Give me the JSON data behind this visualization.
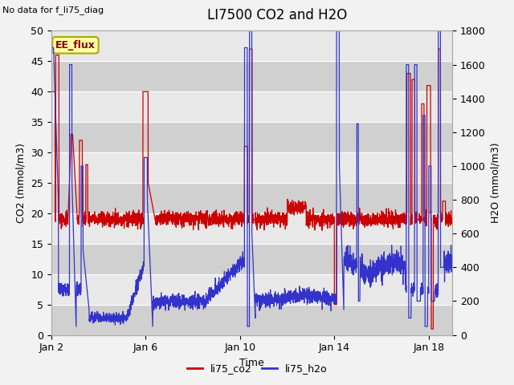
{
  "title": "LI7500 CO2 and H2O",
  "top_left_text": "No data for f_li75_diag",
  "xlabel": "Time",
  "ylabel_left": "CO2 (mmol/m3)",
  "ylabel_right": "H2O (mmol/m3)",
  "ylim_left": [
    0,
    50
  ],
  "ylim_right": [
    0,
    1800
  ],
  "xtick_labels": [
    "Jan 2",
    "Jan 6",
    "Jan 10",
    "Jan 14",
    "Jan 18"
  ],
  "xtick_positions": [
    0,
    4,
    8,
    12,
    16
  ],
  "xlim": [
    0,
    17
  ],
  "yticks_left": [
    0,
    5,
    10,
    15,
    20,
    25,
    30,
    35,
    40,
    45,
    50
  ],
  "yticks_right": [
    0,
    200,
    400,
    600,
    800,
    1000,
    1200,
    1400,
    1600,
    1800
  ],
  "legend_labels": [
    "li75_co2",
    "li75_h2o"
  ],
  "legend_colors": [
    "#cc0000",
    "#3333cc"
  ],
  "box_label": "EE_flux",
  "box_facecolor": "#ffffaa",
  "box_edgecolor": "#aaaa00",
  "box_text_color": "#880000",
  "plot_bg_light": "#e8e8e8",
  "plot_bg_dark": "#d0d0d0",
  "fig_bg": "#f2f2f2",
  "grid_color": "#ffffff",
  "co2_color": "#cc0000",
  "h2o_color": "#3333cc",
  "title_fontsize": 12,
  "axis_label_fontsize": 9,
  "tick_fontsize": 9,
  "top_left_fontsize": 8
}
